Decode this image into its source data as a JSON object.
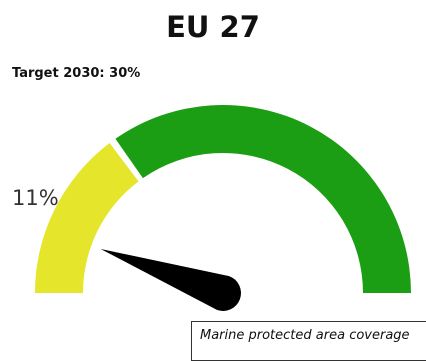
{
  "chart_data": {
    "type": "gauge",
    "title": "EU 27",
    "target_label": "Target 2030: 30%",
    "value": 11,
    "value_label": "11%",
    "target": 30,
    "range": [
      0,
      100
    ],
    "caption": "Marine protected area coverage",
    "colors": {
      "achieved": "#e5e52c",
      "remaining": "#1c9e14",
      "needle": "#000000"
    }
  }
}
